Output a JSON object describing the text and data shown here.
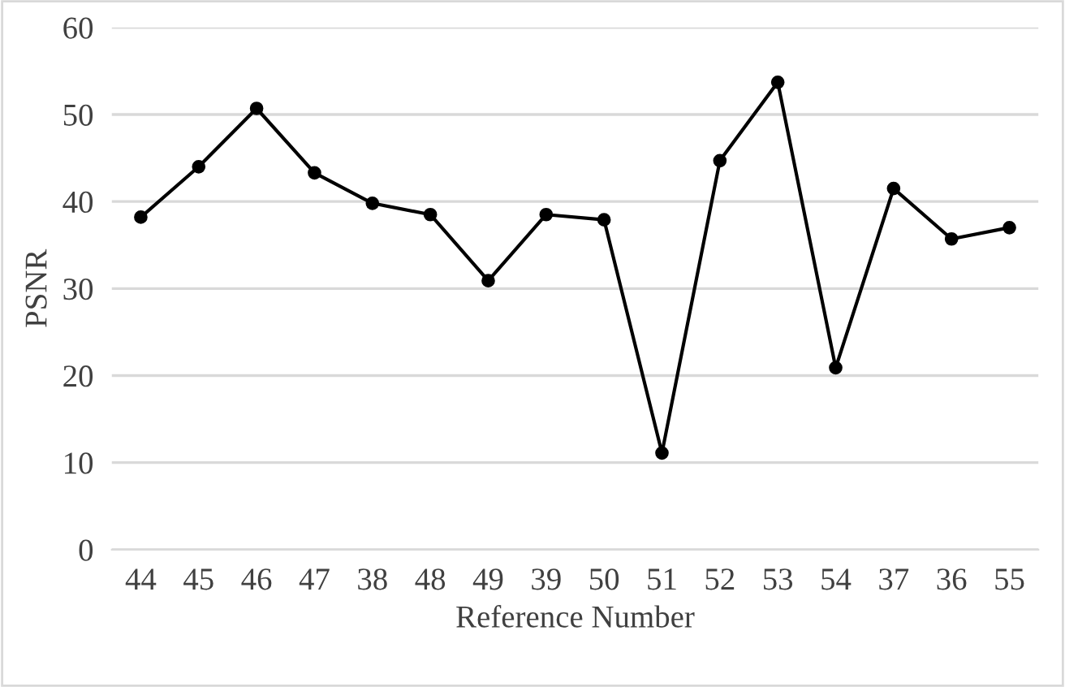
{
  "chart_data": {
    "type": "line",
    "xlabel": "Reference Number",
    "ylabel": "PSNR",
    "categories": [
      "44",
      "45",
      "46",
      "47",
      "38",
      "48",
      "49",
      "39",
      "50",
      "51",
      "52",
      "53",
      "54",
      "37",
      "36",
      "55"
    ],
    "series": [
      {
        "color": "#000000",
        "values": [
          38.2,
          44.0,
          50.7,
          43.3,
          39.8,
          38.5,
          30.9,
          38.5,
          37.9,
          11.1,
          44.7,
          53.7,
          20.9,
          41.5,
          35.7,
          37.0
        ]
      }
    ],
    "ylim": [
      0,
      60
    ],
    "yticks": [
      0,
      10,
      20,
      30,
      40,
      50,
      60
    ],
    "grid": "y",
    "marker": "circle",
    "line_style": "solid"
  }
}
